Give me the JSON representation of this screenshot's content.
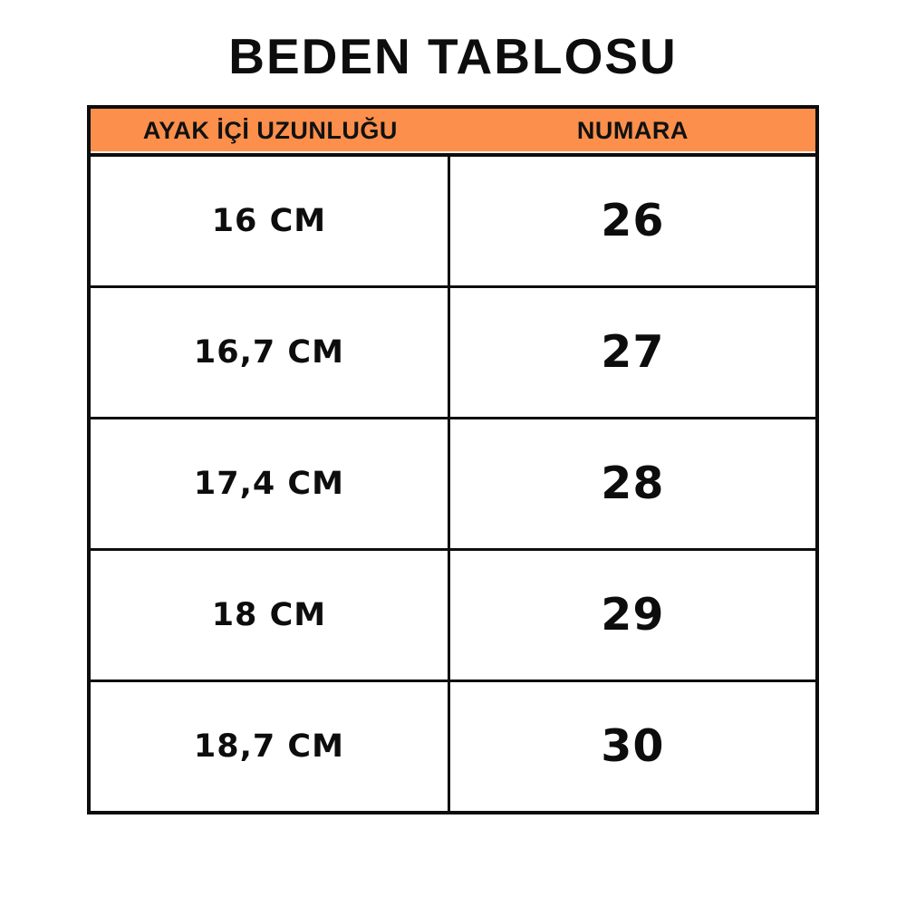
{
  "page_title": "BEDEN TABLOSU",
  "colors": {
    "header_bg": "#FC8F4C",
    "border": "#0D0D0D",
    "text": "#0D0D0D",
    "background": "#FFFFFF"
  },
  "chart_data": {
    "type": "table",
    "title": "BEDEN TABLOSU",
    "columns": [
      "AYAK İÇİ UZUNLUĞU",
      "NUMARA"
    ],
    "rows": [
      [
        "16 CM",
        "26"
      ],
      [
        "16,7 CM",
        "27"
      ],
      [
        "17,4 CM",
        "28"
      ],
      [
        "18 CM",
        "29"
      ],
      [
        "18,7 CM",
        "30"
      ]
    ]
  }
}
